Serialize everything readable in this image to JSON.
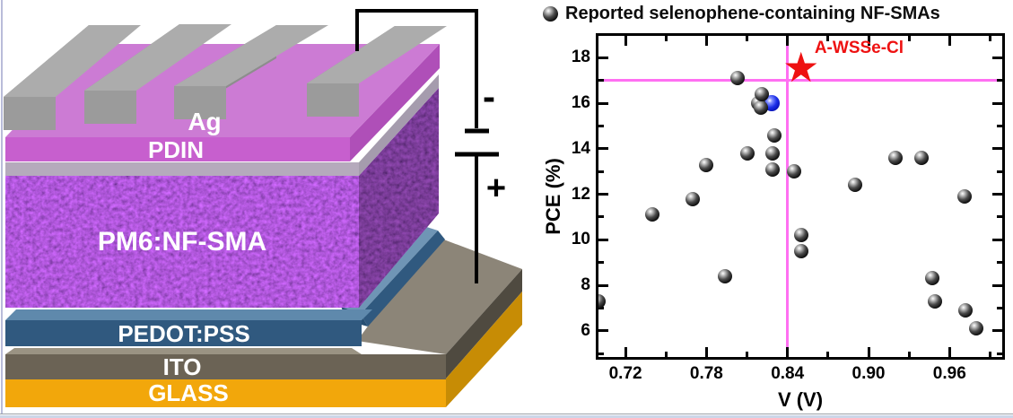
{
  "device": {
    "labels": {
      "electrode": "Ag",
      "etl": "PDIN",
      "active": "PM6:NF-SMA",
      "htl": "PEDOT:PSS",
      "tco": "ITO",
      "substrate": "GLASS"
    },
    "terminal_negative": "-",
    "terminal_positive": "+",
    "colors": {
      "ag_top": "#ACACAC",
      "ag_side": "#8D8D8D",
      "ag_end": "#9B9B9B",
      "pdin_front": "#C75FCE",
      "pdin_top": "#CC7BD4",
      "pdin_side": "#AF4FB8",
      "blend_band": "#A89BB0",
      "blend_band_side": "#8F8399",
      "pedot_front": "#30597F",
      "pedot_top": "#5F89AC",
      "pedot_light": "#6F95B5",
      "pedot_dark": "#274F73",
      "ito_front": "#6B6355",
      "ito_top": "#8C8578",
      "ito_side": "#4F4A40",
      "ito_sliver": "#9A9383",
      "glass_front": "#F2A70B",
      "glass_side": "#C78C05",
      "wire": "#000000"
    }
  },
  "chart_data": {
    "type": "scatter",
    "title": "",
    "legend_label": "Reported selenophene-containing NF-SMAs",
    "legend_position": "top-left",
    "xlabel": "V (V)",
    "ylabel": "PCE (%)",
    "xlim": [
      0.7,
      0.999
    ],
    "ylim": [
      4.85,
      18.96
    ],
    "grid": false,
    "x_ticks": [
      {
        "v": 0.72,
        "label": "0.72"
      },
      {
        "v": 0.78,
        "label": "0.78"
      },
      {
        "v": 0.84,
        "label": "0.84"
      },
      {
        "v": 0.9,
        "label": "0.90"
      },
      {
        "v": 0.96,
        "label": "0.96"
      }
    ],
    "x_minor_ticks": [
      0.75,
      0.81,
      0.87,
      0.93,
      0.99
    ],
    "y_ticks": [
      {
        "v": 6,
        "label": "6"
      },
      {
        "v": 8,
        "label": "8"
      },
      {
        "v": 10,
        "label": "10"
      },
      {
        "v": 12,
        "label": "12"
      },
      {
        "v": 14,
        "label": "14"
      },
      {
        "v": 16,
        "label": "16"
      },
      {
        "v": 18,
        "label": "18"
      }
    ],
    "y_minor_ticks": [
      5,
      7,
      9,
      11,
      13,
      15,
      17
    ],
    "series": [
      {
        "name": "highlighted-blue-sphere",
        "style": "blue-sphere",
        "color": "#1C2FE8",
        "points": [
          [
            0.828,
            16.0
          ]
        ]
      },
      {
        "name": "Reported selenophene-containing NF-SMAs",
        "style": "black-sphere",
        "color": "#111111",
        "points": [
          [
            0.7,
            7.3
          ],
          [
            0.74,
            11.1
          ],
          [
            0.77,
            11.8
          ],
          [
            0.78,
            13.3
          ],
          [
            0.794,
            8.4
          ],
          [
            0.803,
            17.1
          ],
          [
            0.81,
            13.8
          ],
          [
            0.818,
            16.0
          ],
          [
            0.82,
            15.8
          ],
          [
            0.821,
            16.4
          ],
          [
            0.829,
            13.8
          ],
          [
            0.829,
            13.1
          ],
          [
            0.83,
            14.6
          ],
          [
            0.845,
            13.0
          ],
          [
            0.85,
            10.2
          ],
          [
            0.85,
            9.5
          ],
          [
            0.89,
            12.4
          ],
          [
            0.92,
            13.6
          ],
          [
            0.939,
            13.6
          ],
          [
            0.947,
            8.3
          ],
          [
            0.949,
            7.3
          ],
          [
            0.971,
            11.9
          ],
          [
            0.972,
            6.9
          ],
          [
            0.98,
            6.1
          ]
        ]
      },
      {
        "name": "A-WSSe-Cl",
        "style": "red-star",
        "color": "#EE1111",
        "points": [
          [
            0.85,
            17.5
          ]
        ]
      }
    ],
    "crosshair": {
      "x": 0.84,
      "y": 17.0,
      "color": "#FF70F2"
    },
    "annotation": {
      "text": "A-WSSe-Cl",
      "color": "#EE1111",
      "x": 0.893,
      "y": 18.4
    }
  }
}
